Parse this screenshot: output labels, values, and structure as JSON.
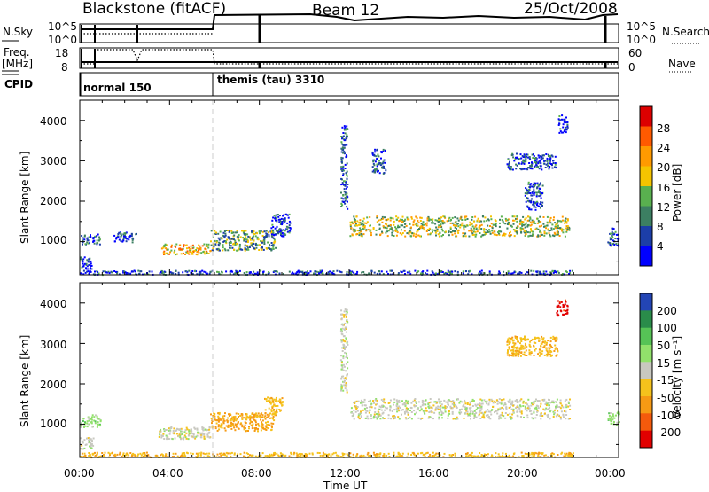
{
  "header": {
    "site": "Blackstone (fitACF)",
    "beam": "Beam 12",
    "date": "25/Oct/2008"
  },
  "panels": {
    "nsky": {
      "left_label": "N.Sky",
      "left_ticks": [
        "10^5",
        "10^0"
      ],
      "right_label": "N.Search",
      "right_ticks": [
        "10^5",
        "10^0"
      ]
    },
    "freq": {
      "left_label": "Freq.",
      "left_unit": "[MHz]",
      "left_ticks": [
        "18",
        "8"
      ],
      "right_label": "Nave",
      "right_ticks": [
        "60",
        "0"
      ]
    },
    "cpid": {
      "label": "CPID",
      "modes": [
        "normal 150",
        "themis (tau) 3310"
      ]
    }
  },
  "colorbars": {
    "power": {
      "label": "Power [dB]",
      "ticks": [
        "28",
        "24",
        "20",
        "16",
        "12",
        "8",
        "4"
      ],
      "colors": [
        "#dd0000",
        "#ff5a00",
        "#ff9a00",
        "#f5c400",
        "#59b04f",
        "#3c7f62",
        "#1c3ea8",
        "#0000ff"
      ]
    },
    "velocity": {
      "label": "Velocity [m s⁻¹]",
      "ticks": [
        "200",
        "100",
        "50",
        "15",
        "-15",
        "-50",
        "-100",
        "-200"
      ],
      "colors": [
        "#2345b5",
        "#2a8c4a",
        "#56c356",
        "#91e16b",
        "#c8c8c0",
        "#f5c21c",
        "#f69a14",
        "#f45a0c",
        "#e20000"
      ]
    }
  },
  "chart_data": [
    {
      "type": "heatmap",
      "panel": "power",
      "ylabel": "Slant Range [km]",
      "xlabel": "",
      "x_ticks": [
        "00:00",
        "04:00",
        "08:00",
        "12:00",
        "16:00",
        "20:00",
        "00:00"
      ],
      "y_ticks": [
        "4000",
        "3000",
        "2000",
        "1000"
      ],
      "xlim_hours": [
        0,
        24
      ],
      "ylim_km": [
        180,
        4500
      ],
      "scatter_bands": [
        {
          "t0": 0.0,
          "t1": 0.9,
          "r0": 950,
          "r1": 1200,
          "value": 6
        },
        {
          "t0": 0.0,
          "t1": 0.5,
          "r0": 300,
          "r1": 650,
          "value": 5
        },
        {
          "t0": 1.5,
          "t1": 2.5,
          "r0": 1000,
          "r1": 1250,
          "value": 5
        },
        {
          "t0": 3.6,
          "t1": 5.8,
          "r0": 700,
          "r1": 960,
          "value": 20
        },
        {
          "t0": 5.8,
          "t1": 8.7,
          "r0": 800,
          "r1": 1300,
          "value": 12
        },
        {
          "t0": 8.5,
          "t1": 9.4,
          "r0": 1150,
          "r1": 1700,
          "value": 5
        },
        {
          "t0": 0.0,
          "t1": 22.0,
          "r0": 200,
          "r1": 300,
          "value": 6
        },
        {
          "t0": 11.6,
          "t1": 11.9,
          "r0": 1800,
          "r1": 3900,
          "value": 8
        },
        {
          "t0": 12.0,
          "t1": 21.8,
          "r0": 1150,
          "r1": 1650,
          "value": 16
        },
        {
          "t0": 13.0,
          "t1": 13.6,
          "r0": 2700,
          "r1": 3300,
          "value": 6
        },
        {
          "t0": 19.0,
          "t1": 21.2,
          "r0": 2800,
          "r1": 3200,
          "value": 6
        },
        {
          "t0": 19.8,
          "t1": 20.6,
          "r0": 1800,
          "r1": 2500,
          "value": 6
        },
        {
          "t0": 21.3,
          "t1": 21.7,
          "r0": 3700,
          "r1": 4150,
          "value": 6
        },
        {
          "t0": 23.5,
          "t1": 24.0,
          "r0": 900,
          "r1": 1350,
          "value": 6
        }
      ]
    },
    {
      "type": "heatmap",
      "panel": "velocity",
      "ylabel": "Slant Range [km]",
      "xlabel": "Time UT",
      "x_ticks": [
        "00:00",
        "04:00",
        "08:00",
        "12:00",
        "16:00",
        "20:00",
        "00:00"
      ],
      "y_ticks": [
        "4000",
        "3000",
        "2000",
        "1000"
      ],
      "xlim_hours": [
        0,
        24
      ],
      "ylim_km": [
        180,
        4500
      ],
      "scatter_bands": [
        {
          "t0": 0.0,
          "t1": 0.9,
          "r0": 950,
          "r1": 1250,
          "value": 30
        },
        {
          "t0": 0.0,
          "t1": 0.6,
          "r0": 400,
          "r1": 700,
          "value": 0
        },
        {
          "t0": 3.5,
          "t1": 5.8,
          "r0": 650,
          "r1": 950,
          "value": 0
        },
        {
          "t0": 5.8,
          "t1": 8.7,
          "r0": 850,
          "r1": 1300,
          "value": -60
        },
        {
          "t0": 8.2,
          "t1": 9.0,
          "r0": 1250,
          "r1": 1700,
          "value": -40
        },
        {
          "t0": 0.0,
          "t1": 22.0,
          "r0": 200,
          "r1": 320,
          "value": -40
        },
        {
          "t0": 11.6,
          "t1": 11.9,
          "r0": 1800,
          "r1": 3900,
          "value": 0
        },
        {
          "t0": 12.0,
          "t1": 21.8,
          "r0": 1150,
          "r1": 1650,
          "value": 0
        },
        {
          "t0": 19.0,
          "t1": 21.3,
          "r0": 2700,
          "r1": 3200,
          "value": -40
        },
        {
          "t0": 21.2,
          "t1": 21.7,
          "r0": 3700,
          "r1": 4100,
          "value": -220
        },
        {
          "t0": 23.5,
          "t1": 24.0,
          "r0": 1000,
          "r1": 1350,
          "value": 30
        }
      ]
    }
  ]
}
